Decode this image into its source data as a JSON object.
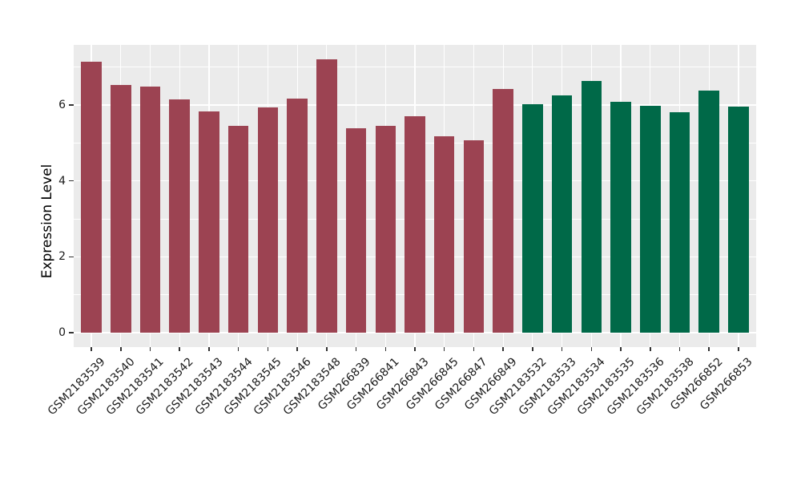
{
  "style": {
    "figure_background": "#FFFFFF",
    "panel_background": "#EBEBEB",
    "grid_color": "#FFFFFF",
    "tick_color": "#333333",
    "axis_text_color": "#1A1A1A",
    "group1_color": "#9C4352",
    "group2_color": "#006948"
  },
  "chart_data": {
    "type": "bar",
    "title": "",
    "xlabel": "",
    "ylabel": "Expression Level",
    "ylim": [
      0,
      7.6
    ],
    "yticks": [
      0,
      2,
      4,
      6
    ],
    "yticks_minor": [
      1,
      3,
      5,
      7
    ],
    "grid": "on",
    "legend_position": "none",
    "x_label_rotation": 45,
    "categories": [
      "GSM2183539",
      "GSM2183540",
      "GSM2183541",
      "GSM2183542",
      "GSM2183543",
      "GSM2183544",
      "GSM2183545",
      "GSM2183546",
      "GSM2183548",
      "GSM266839",
      "GSM266841",
      "GSM266843",
      "GSM266845",
      "GSM266847",
      "GSM266849",
      "GSM2183532",
      "GSM2183533",
      "GSM2183534",
      "GSM2183535",
      "GSM2183536",
      "GSM2183538",
      "GSM266852",
      "GSM266853"
    ],
    "values": [
      7.14,
      6.53,
      6.49,
      6.15,
      5.83,
      5.45,
      5.93,
      6.17,
      7.2,
      5.38,
      5.45,
      5.7,
      5.17,
      5.08,
      6.42,
      6.02,
      6.25,
      6.63,
      6.09,
      5.98,
      5.82,
      6.38,
      5.95
    ],
    "bar_colors": [
      "#9C4352",
      "#9C4352",
      "#9C4352",
      "#9C4352",
      "#9C4352",
      "#9C4352",
      "#9C4352",
      "#9C4352",
      "#9C4352",
      "#9C4352",
      "#9C4352",
      "#9C4352",
      "#9C4352",
      "#9C4352",
      "#9C4352",
      "#006948",
      "#006948",
      "#006948",
      "#006948",
      "#006948",
      "#006948",
      "#006948",
      "#006948"
    ]
  }
}
